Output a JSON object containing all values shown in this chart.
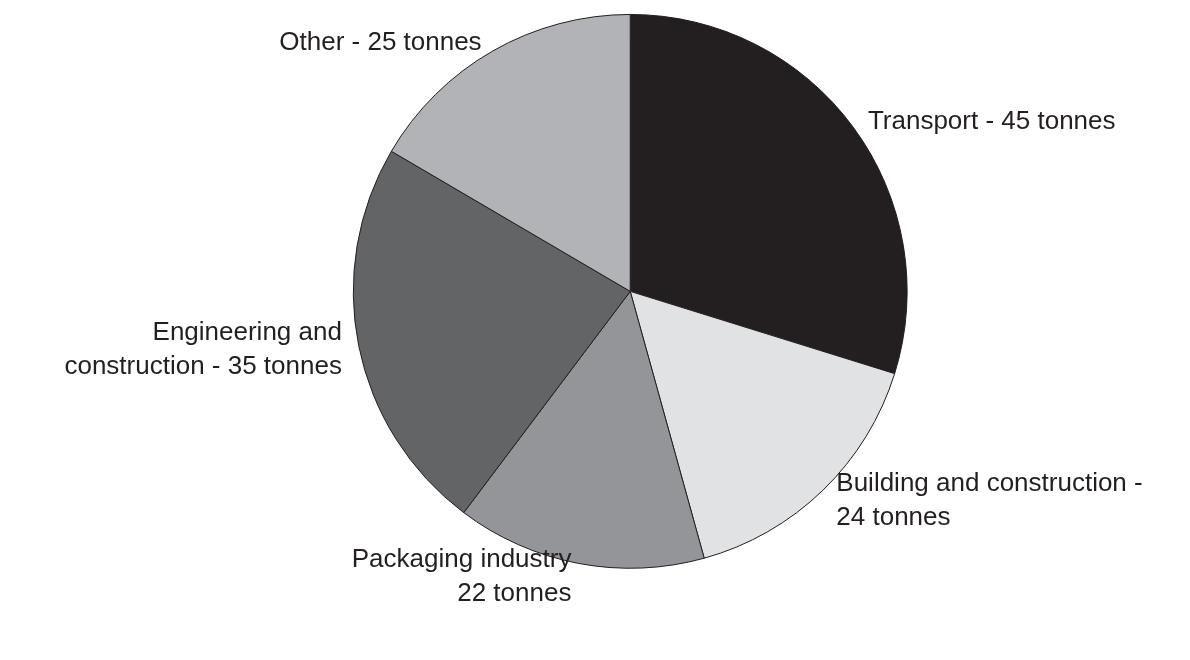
{
  "chart_data": {
    "type": "pie",
    "categories": [
      "Transport - 45 tonnes",
      "Building and construction -\n24 tonnes",
      "Packaging industry\n22 tonnes",
      "Engineering and\nconstruction - 35 tonnes",
      "Other - 25 tonnes"
    ],
    "values": [
      45,
      24,
      22,
      35,
      25
    ],
    "colors": [
      "#231f20",
      "#e1e2e3",
      "#939598",
      "#636466",
      "#b1b3b6"
    ],
    "legend": false
  }
}
